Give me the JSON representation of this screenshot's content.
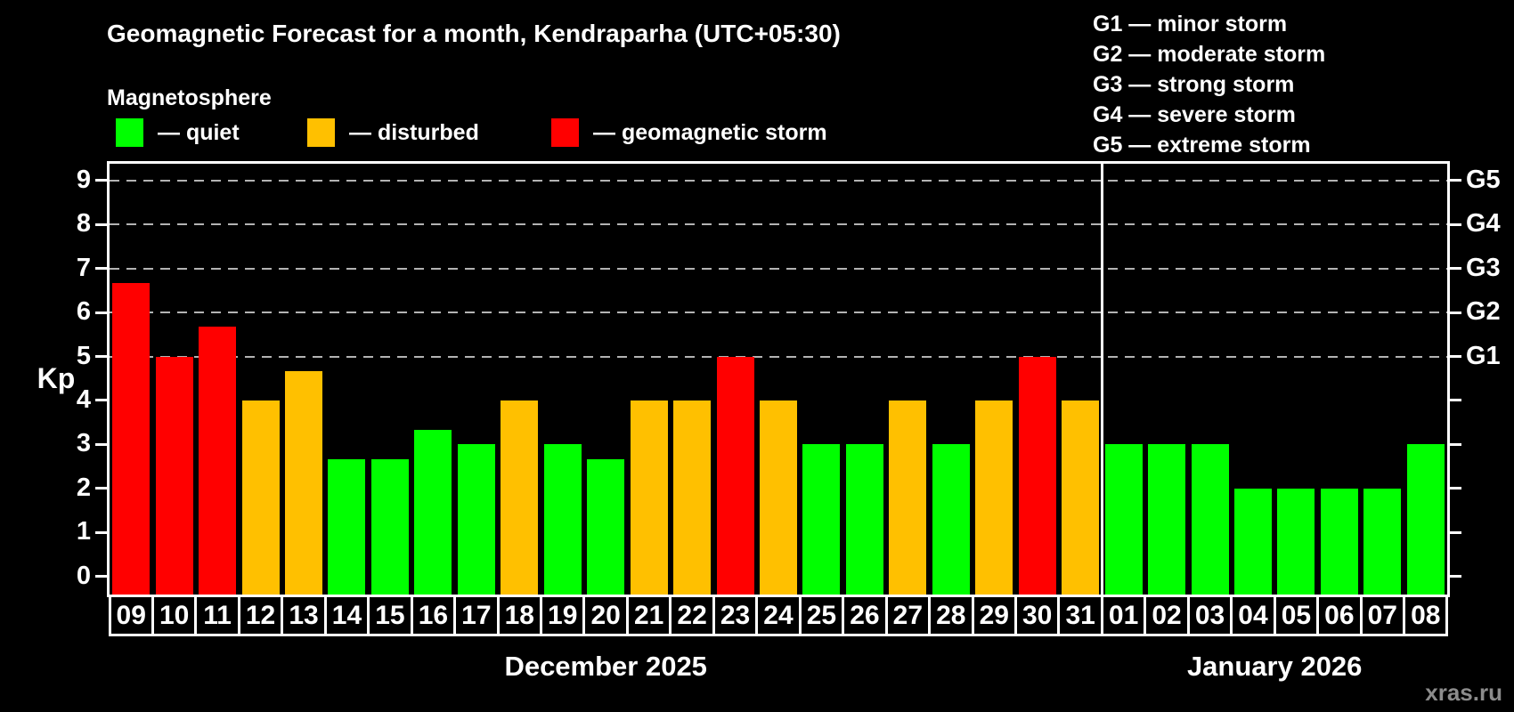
{
  "title": "Geomagnetic Forecast for a month, Kendraparha (UTC+05:30)",
  "subtitle": "Magnetosphere",
  "legend": {
    "quiet_label": "— quiet",
    "disturbed_label": "— disturbed",
    "storm_label": "— geomagnetic storm"
  },
  "g_legend": [
    "G1 — minor storm",
    "G2 — moderate storm",
    "G3 — strong storm",
    "G4 — severe storm",
    "G5 — extreme storm"
  ],
  "colors": {
    "quiet": "#00ff00",
    "disturbed": "#ffc000",
    "storm": "#ff0000",
    "gridline": "#b3b3b3",
    "axis": "#ffffff",
    "watermark": "#8c8c8c"
  },
  "watermark": "xras.ru",
  "chart_data": {
    "type": "bar",
    "title": "Geomagnetic Forecast for a month, Kendraparha (UTC+05:30)",
    "ylabel": "Kp",
    "ylim": [
      0,
      9
    ],
    "yticks": [
      0,
      1,
      2,
      3,
      4,
      5,
      6,
      7,
      8,
      9
    ],
    "grid": "dashed horizontal at Kp 5-9 only",
    "right_axis_labels": [
      {
        "kp": 5,
        "label": "G1"
      },
      {
        "kp": 6,
        "label": "G2"
      },
      {
        "kp": 7,
        "label": "G3"
      },
      {
        "kp": 8,
        "label": "G4"
      },
      {
        "kp": 9,
        "label": "G5"
      }
    ],
    "months": [
      {
        "label": "December 2025",
        "days": 23
      },
      {
        "label": "January 2026",
        "days": 8
      }
    ],
    "categories": [
      "09",
      "10",
      "11",
      "12",
      "13",
      "14",
      "15",
      "16",
      "17",
      "18",
      "19",
      "20",
      "21",
      "22",
      "23",
      "24",
      "25",
      "26",
      "27",
      "28",
      "29",
      "30",
      "31",
      "01",
      "02",
      "03",
      "04",
      "05",
      "06",
      "07",
      "08"
    ],
    "values": [
      6.67,
      5,
      5.67,
      4,
      4.67,
      2.67,
      2.67,
      3.33,
      3,
      4,
      3,
      2.67,
      4,
      4,
      5,
      4,
      3,
      3,
      4,
      3,
      4,
      5,
      4,
      3,
      3,
      3,
      2,
      2,
      2,
      2,
      3
    ],
    "status": [
      "storm",
      "storm",
      "storm",
      "disturbed",
      "disturbed",
      "quiet",
      "quiet",
      "quiet",
      "quiet",
      "disturbed",
      "quiet",
      "quiet",
      "disturbed",
      "disturbed",
      "storm",
      "disturbed",
      "quiet",
      "quiet",
      "disturbed",
      "quiet",
      "disturbed",
      "storm",
      "disturbed",
      "quiet",
      "quiet",
      "quiet",
      "quiet",
      "quiet",
      "quiet",
      "quiet",
      "quiet"
    ]
  }
}
